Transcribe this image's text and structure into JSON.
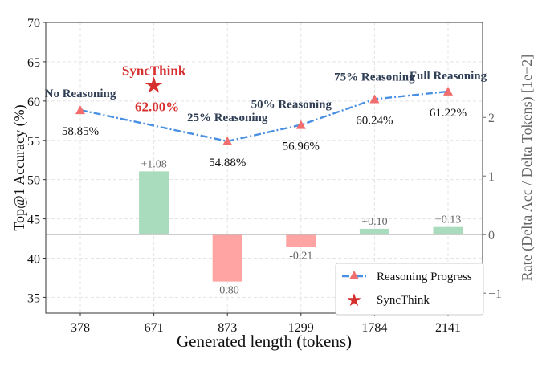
{
  "chart_data": {
    "type": "bar+line",
    "xlabel": "Generated length (tokens)",
    "ylabel_left": "Top@1 Accuracy (%)",
    "ylabel_right": "Rate (Delta Acc / Delta Tokens) [1e−2]",
    "categories": [
      "378",
      "671",
      "873",
      "1299",
      "1784",
      "2141"
    ],
    "ylim_left": [
      33,
      70
    ],
    "yticks_left": [
      35,
      40,
      45,
      50,
      55,
      60,
      65,
      70
    ],
    "ylim_right": [
      -1.34,
      3.62
    ],
    "yticks_right": [
      -1,
      0,
      1,
      2
    ],
    "yticks_right_labels": [
      "−1",
      "0",
      "1",
      "2"
    ],
    "grid": true,
    "line_series": {
      "name": "Reasoning Progress",
      "categories": [
        "378",
        "873",
        "1299",
        "1784",
        "2141"
      ],
      "values": [
        58.85,
        54.88,
        56.96,
        60.24,
        61.22
      ],
      "value_labels": [
        "58.85%",
        "54.88%",
        "56.96%",
        "60.24%",
        "61.22%"
      ],
      "point_labels": [
        "No Reasoning",
        "25% Reasoning",
        "50% Reasoning",
        "75% Reasoning",
        "Full Reasoning"
      ],
      "color": "#4a90e2",
      "marker_color": "#f26d6d"
    },
    "star_point": {
      "name": "SyncThink",
      "category": "671",
      "value": 62.0,
      "value_label": "62.00%",
      "color": "#d62f2f"
    },
    "bar_series": {
      "categories": [
        "671",
        "873",
        "1299",
        "1784",
        "2141"
      ],
      "values": [
        1.08,
        -0.8,
        -0.21,
        0.1,
        0.13
      ],
      "value_labels": [
        "+1.08",
        "-0.80",
        "-0.21",
        "+0.10",
        "+0.13"
      ],
      "positive_color": "#a8dcbc",
      "negative_color": "#ffa3a3"
    },
    "legend": {
      "placement": "lower-right",
      "entries": [
        "Reasoning Progress",
        "SyncThink"
      ]
    }
  }
}
